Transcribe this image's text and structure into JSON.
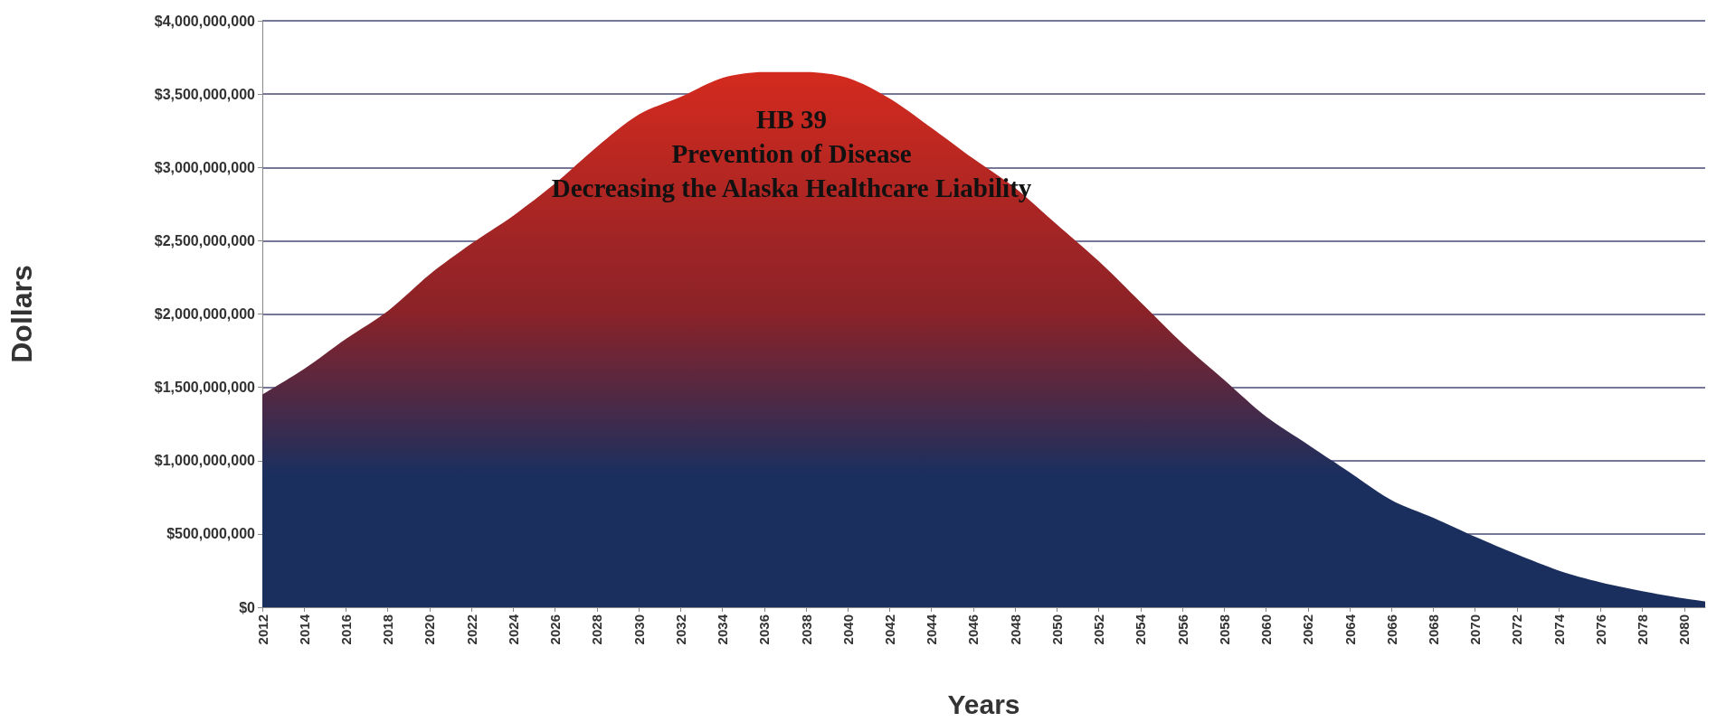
{
  "chart_data": {
    "type": "area",
    "title": "HB 39\nPrevention of Disease\nDecreasing the Alaska Healthcare Liability",
    "xlabel": "Years",
    "ylabel": "Dollars",
    "x": [
      2012,
      2014,
      2016,
      2018,
      2020,
      2022,
      2024,
      2026,
      2028,
      2030,
      2032,
      2034,
      2036,
      2038,
      2040,
      2042,
      2044,
      2046,
      2048,
      2050,
      2052,
      2054,
      2056,
      2058,
      2060,
      2062,
      2064,
      2066,
      2068,
      2070,
      2072,
      2074,
      2076,
      2078,
      2080,
      2081
    ],
    "series": [
      {
        "color": "#d42a1e",
        "values": [
          1450000000,
          1625000000,
          1830000000,
          2020000000,
          2270000000,
          2480000000,
          2670000000,
          2890000000,
          3140000000,
          3360000000,
          3480000000,
          3610000000,
          3650000000,
          3650000000,
          3610000000,
          3470000000,
          3270000000,
          3060000000,
          2860000000,
          2610000000,
          2360000000,
          2080000000,
          1800000000,
          1550000000,
          1300000000,
          1110000000,
          920000000,
          730000000,
          610000000,
          480000000,
          360000000,
          250000000,
          170000000,
          110000000,
          60000000,
          40000000
        ]
      }
    ],
    "xlim": [
      2012,
      2081
    ],
    "xticks": [
      2012,
      2014,
      2016,
      2018,
      2020,
      2022,
      2024,
      2026,
      2028,
      2030,
      2032,
      2034,
      2036,
      2038,
      2040,
      2042,
      2044,
      2046,
      2048,
      2050,
      2052,
      2054,
      2056,
      2058,
      2060,
      2062,
      2064,
      2066,
      2068,
      2070,
      2072,
      2074,
      2076,
      2078,
      2080
    ],
    "ylim": [
      0,
      4000000000
    ],
    "yticks": [
      {
        "value": 0,
        "label": "$0"
      },
      {
        "value": 500000000,
        "label": "$500,000,000"
      },
      {
        "value": 1000000000,
        "label": "$1,000,000,000"
      },
      {
        "value": 1500000000,
        "label": "$1,500,000,000"
      },
      {
        "value": 2000000000,
        "label": "$2,000,000,000"
      },
      {
        "value": 2500000000,
        "label": "$2,500,000,000"
      },
      {
        "value": 3000000000,
        "label": "$3,000,000,000"
      },
      {
        "value": 3500000000,
        "label": "$3,500,000,000"
      },
      {
        "value": 4000000000,
        "label": "$4,000,000,000"
      }
    ],
    "grid": "y",
    "marker": "none"
  }
}
